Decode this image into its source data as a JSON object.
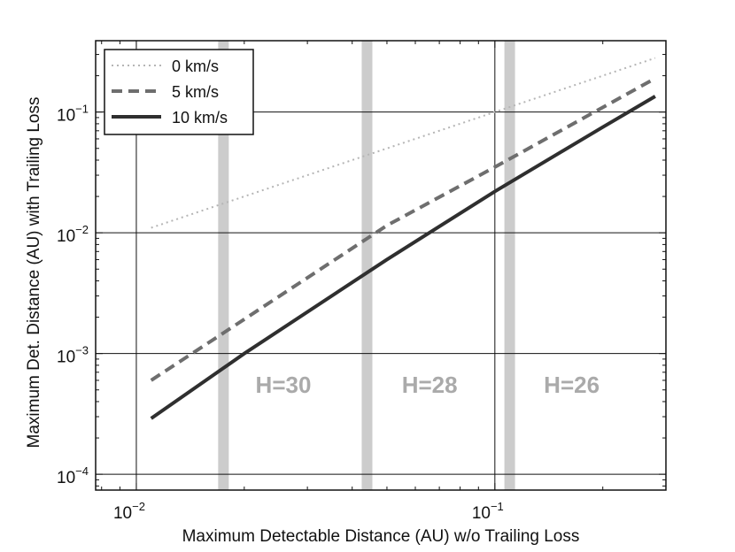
{
  "chart_data": {
    "type": "line",
    "xlabel": "Maximum Detectable Distance (AU) w/o Trailing Loss",
    "ylabel": "Maximum Det. Distance (AU) with Trailing Loss",
    "xscale": "log",
    "yscale": "log",
    "xlim": [
      0.0077,
      0.3
    ],
    "ylim": [
      7.4e-05,
      0.39
    ],
    "grid": "major ticks on",
    "legend_position": "top-left",
    "xticks": [
      {
        "value": 0.01,
        "base": "10",
        "exp": "−2"
      },
      {
        "value": 0.1,
        "base": "10",
        "exp": "−1"
      }
    ],
    "yticks": [
      {
        "value": 0.0001,
        "base": "10",
        "exp": "−4"
      },
      {
        "value": 0.001,
        "base": "10",
        "exp": "−3"
      },
      {
        "value": 0.01,
        "base": "10",
        "exp": "−2"
      },
      {
        "value": 0.1,
        "base": "10",
        "exp": "−1"
      }
    ],
    "series": [
      {
        "name": "0 km/s",
        "style": "dotted",
        "color": "#b5b5b5",
        "x": [
          0.011,
          0.28
        ],
        "y": [
          0.011,
          0.28
        ]
      },
      {
        "name": "5 km/s",
        "style": "dashed",
        "color": "#6e6e6e",
        "x": [
          0.011,
          0.017,
          0.05,
          0.1,
          0.28
        ],
        "y": [
          0.0006,
          0.0014,
          0.0115,
          0.035,
          0.19
        ]
      },
      {
        "name": "10 km/s",
        "style": "solid",
        "color": "#2f2f2f",
        "x": [
          0.011,
          0.02,
          0.05,
          0.1,
          0.2,
          0.28
        ],
        "y": [
          0.00029,
          0.001,
          0.006,
          0.022,
          0.075,
          0.135
        ]
      }
    ],
    "bands": [
      {
        "x": 0.0175,
        "label": "H=30",
        "label_x": 0.0215
      },
      {
        "x": 0.044,
        "label": "H=28",
        "label_x": 0.055
      },
      {
        "x": 0.11,
        "label": "H=26",
        "label_x": 0.137
      }
    ],
    "band_label_y": 0.00055,
    "band_color": "#cccccc",
    "band_label_color": "#aaaaaa"
  }
}
